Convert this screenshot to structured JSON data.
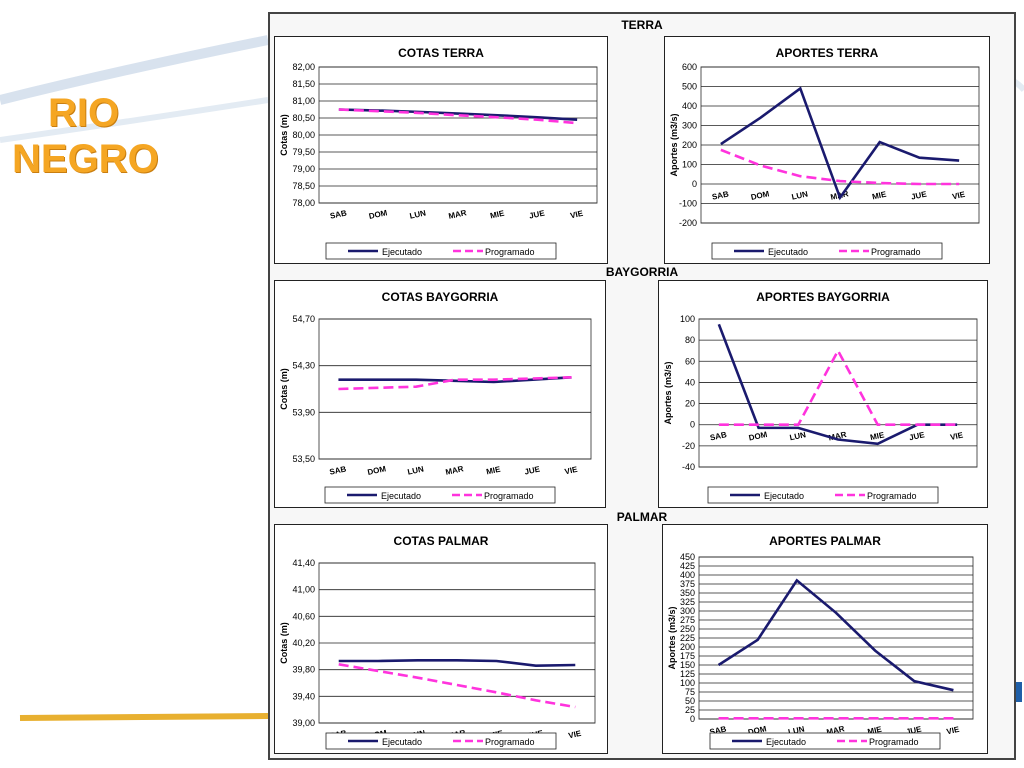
{
  "slide": {
    "title_line1": "RIO",
    "title_line2": "NEGRO"
  },
  "sections": [
    "TERRA",
    "BAYGORRIA",
    "PALMAR"
  ],
  "legend": {
    "ejecutado": "Ejecutado",
    "programado": "Programado"
  },
  "colors": {
    "ejecutado": "#1a1a6e",
    "programado": "#ff33dd",
    "title": "#f5a623"
  },
  "chart_data": [
    {
      "id": "cotas-terra",
      "type": "line",
      "title": "COTAS TERRA",
      "ylabel": "Cotas (m)",
      "categories": [
        "SAB",
        "DOM",
        "LUN",
        "MAR",
        "MIE",
        "JUE",
        "VIE"
      ],
      "ylim": [
        78.0,
        82.0
      ],
      "yticks": [
        78.0,
        78.5,
        79.0,
        79.5,
        80.0,
        80.5,
        81.0,
        81.5,
        82.0
      ],
      "ytick_labels": [
        "78,00",
        "78,50",
        "79,00",
        "79,50",
        "80,00",
        "80,50",
        "81,00",
        "81,50",
        "82,00"
      ],
      "series": [
        {
          "name": "Ejecutado",
          "values": [
            80.75,
            80.72,
            80.68,
            80.63,
            80.58,
            80.52,
            80.45
          ]
        },
        {
          "name": "Programado",
          "values": [
            80.75,
            80.7,
            80.65,
            80.58,
            80.52,
            80.45,
            80.35
          ]
        }
      ]
    },
    {
      "id": "aportes-terra",
      "type": "line",
      "title": "APORTES TERRA",
      "ylabel": "Aportes (m3/s)",
      "categories": [
        "SAB",
        "DOM",
        "LUN",
        "MAR",
        "MIE",
        "JUE",
        "VIE"
      ],
      "ylim": [
        -200,
        600
      ],
      "yticks": [
        -200,
        -100,
        0,
        100,
        200,
        300,
        400,
        500,
        600
      ],
      "ytick_labels": [
        "-200",
        "-100",
        "0",
        "100",
        "200",
        "300",
        "400",
        "500",
        "600"
      ],
      "series": [
        {
          "name": "Ejecutado",
          "values": [
            205,
            340,
            490,
            -70,
            215,
            135,
            120
          ]
        },
        {
          "name": "Programado",
          "values": [
            175,
            95,
            40,
            15,
            5,
            0,
            0
          ]
        }
      ]
    },
    {
      "id": "cotas-baygorria",
      "type": "line",
      "title": "COTAS BAYGORRIA",
      "ylabel": "Cotas (m)",
      "categories": [
        "SAB",
        "DOM",
        "LUN",
        "MAR",
        "MIE",
        "JUE",
        "VIE"
      ],
      "ylim": [
        53.5,
        54.7
      ],
      "yticks": [
        53.5,
        53.9,
        54.3,
        54.7
      ],
      "ytick_labels": [
        "53,50",
        "53,90",
        "54,30",
        "54,70"
      ],
      "series": [
        {
          "name": "Ejecutado",
          "values": [
            54.18,
            54.18,
            54.18,
            54.17,
            54.16,
            54.18,
            54.2
          ]
        },
        {
          "name": "Programado",
          "values": [
            54.1,
            54.11,
            54.12,
            54.18,
            54.18,
            54.19,
            54.2
          ]
        }
      ]
    },
    {
      "id": "aportes-baygorria",
      "type": "line",
      "title": "APORTES BAYGORRIA",
      "ylabel": "Aportes (m3/s)",
      "categories": [
        "SAB",
        "DOM",
        "LUN",
        "MAR",
        "MIE",
        "JUE",
        "VIE"
      ],
      "ylim": [
        -40,
        100
      ],
      "yticks": [
        -40,
        -20,
        0,
        20,
        40,
        60,
        80,
        100
      ],
      "ytick_labels": [
        "-40",
        "-20",
        "0",
        "20",
        "40",
        "60",
        "80",
        "100"
      ],
      "series": [
        {
          "name": "Ejecutado",
          "values": [
            95,
            -3,
            -3,
            -14,
            -18,
            0,
            0
          ]
        },
        {
          "name": "Programado",
          "values": [
            0,
            0,
            0,
            70,
            0,
            0,
            0
          ]
        }
      ]
    },
    {
      "id": "cotas-palmar",
      "type": "line",
      "title": "COTAS PALMAR",
      "ylabel": "Cotas (m)",
      "categories": [
        "SAB",
        "DOM",
        "LUN",
        "MAR",
        "MIE",
        "JUE",
        "VIE"
      ],
      "ylim": [
        39.0,
        41.4
      ],
      "yticks": [
        39.0,
        39.4,
        39.8,
        40.2,
        40.6,
        41.0,
        41.4
      ],
      "ytick_labels": [
        "39,00",
        "39,40",
        "39,80",
        "40,20",
        "40,60",
        "41,00",
        "41,40"
      ],
      "series": [
        {
          "name": "Ejecutado",
          "values": [
            39.93,
            39.93,
            39.94,
            39.94,
            39.93,
            39.86,
            39.87
          ]
        },
        {
          "name": "Programado",
          "values": [
            39.88,
            39.78,
            39.68,
            39.57,
            39.46,
            39.34,
            39.24
          ]
        }
      ]
    },
    {
      "id": "aportes-palmar",
      "type": "line",
      "title": "APORTES PALMAR",
      "ylabel": "Aportes (m3/s)",
      "categories": [
        "SAB",
        "DOM",
        "LUN",
        "MAR",
        "MIE",
        "JUE",
        "VIE"
      ],
      "ylim": [
        0,
        450
      ],
      "yticks": [
        0,
        25,
        50,
        75,
        100,
        125,
        150,
        175,
        200,
        225,
        250,
        275,
        300,
        325,
        350,
        375,
        400,
        425,
        450
      ],
      "ytick_labels": [
        "0",
        "25",
        "50",
        "75",
        "100",
        "125",
        "150",
        "175",
        "200",
        "225",
        "250",
        "275",
        "300",
        "325",
        "350",
        "375",
        "400",
        "425",
        "450"
      ],
      "series": [
        {
          "name": "Ejecutado",
          "values": [
            150,
            220,
            385,
            295,
            190,
            105,
            80
          ]
        },
        {
          "name": "Programado",
          "values": [
            2,
            2,
            2,
            2,
            2,
            2,
            2
          ]
        }
      ]
    }
  ]
}
